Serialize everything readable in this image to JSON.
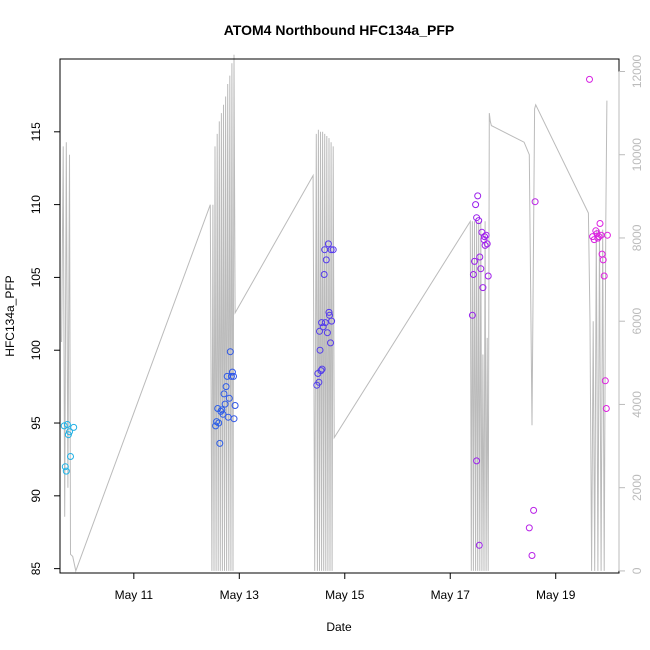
{
  "chart_data": {
    "type": "scatter",
    "title": "ATOM4 Northbound HFC134a_PFP",
    "xlabel": "Date",
    "ylabel": "HFC134a_PFP",
    "xlim": [
      9.6,
      20.2
    ],
    "ylim": [
      84.7,
      120.0
    ],
    "y2lim": [
      -50,
      12300
    ],
    "x_ticks": [
      {
        "value": 11,
        "label": "May 11"
      },
      {
        "value": 13,
        "label": "May 13"
      },
      {
        "value": 15,
        "label": "May 15"
      },
      {
        "value": 17,
        "label": "May 17"
      },
      {
        "value": 19,
        "label": "May 19"
      }
    ],
    "y_ticks": [
      85,
      90,
      95,
      100,
      105,
      110,
      115
    ],
    "y2_ticks": [
      0,
      2000,
      4000,
      6000,
      8000,
      10000,
      12000
    ],
    "colors": {
      "axis": "#000000",
      "line": "#bbbbbb",
      "right_axis": "#bbbbbb",
      "point_gradient": [
        "#1fb4e6",
        "#3050e8",
        "#8020f0",
        "#e020e0"
      ]
    },
    "series": [
      {
        "name": "HFC134a_PFP",
        "x": [
          9.68,
          9.7,
          9.72,
          9.74,
          9.76,
          9.78,
          9.8,
          9.86,
          12.55,
          12.57,
          12.59,
          12.61,
          12.63,
          12.65,
          12.67,
          12.69,
          12.71,
          12.73,
          12.75,
          12.77,
          12.79,
          12.81,
          12.83,
          12.85,
          12.87,
          12.89,
          12.9,
          12.92,
          14.47,
          14.49,
          14.51,
          14.53,
          14.55,
          14.57,
          14.59,
          14.61,
          14.63,
          14.65,
          14.67,
          14.69,
          14.71,
          14.73,
          14.75,
          14.52,
          14.56,
          14.62,
          14.7,
          14.74,
          14.78,
          17.42,
          17.44,
          17.46,
          17.48,
          17.5,
          17.52,
          17.54,
          17.56,
          17.58,
          17.6,
          17.62,
          17.64,
          17.66,
          17.68,
          17.7,
          17.72,
          17.5,
          17.55,
          17.65,
          18.5,
          18.55,
          18.58,
          18.61,
          19.64,
          19.7,
          19.73,
          19.76,
          19.78,
          19.8,
          19.82,
          19.84,
          19.86,
          19.88,
          19.9,
          19.92,
          19.94,
          19.96,
          19.98
        ],
        "y": [
          94.8,
          92.0,
          91.7,
          94.9,
          94.2,
          94.4,
          92.7,
          94.7,
          94.8,
          95.1,
          96.0,
          95.0,
          93.6,
          95.8,
          95.9,
          95.6,
          97.0,
          96.3,
          97.5,
          98.2,
          95.4,
          96.7,
          99.9,
          98.2,
          98.5,
          98.2,
          95.3,
          96.2,
          97.6,
          98.4,
          97.8,
          100.0,
          98.6,
          98.7,
          101.6,
          105.2,
          101.9,
          106.2,
          101.2,
          107.3,
          102.4,
          100.5,
          102.0,
          101.3,
          101.9,
          106.9,
          102.6,
          106.9,
          106.9,
          102.4,
          105.2,
          106.1,
          110.0,
          109.1,
          110.6,
          108.9,
          106.4,
          105.6,
          108.1,
          104.3,
          107.6,
          107.2,
          107.9,
          107.3,
          105.1,
          92.4,
          86.6,
          107.8,
          87.8,
          85.9,
          89.0,
          110.2,
          118.6,
          107.8,
          107.6,
          108.2,
          108.0,
          107.7,
          107.8,
          108.7,
          107.9,
          106.6,
          106.2,
          105.1,
          97.9,
          96.0,
          107.9
        ]
      },
      {
        "name": "altitude",
        "type": "line",
        "x": [
          9.63,
          9.66,
          9.69,
          9.72,
          9.75,
          9.78,
          9.8,
          9.84,
          9.9,
          12.45,
          12.48,
          12.5,
          12.52,
          12.54,
          12.56,
          12.58,
          12.6,
          12.62,
          12.64,
          12.66,
          12.68,
          12.7,
          12.72,
          12.74,
          12.76,
          12.78,
          12.8,
          12.82,
          12.84,
          12.86,
          12.88,
          12.9,
          12.92,
          14.4,
          14.43,
          14.46,
          14.48,
          14.5,
          14.52,
          14.54,
          14.56,
          14.58,
          14.6,
          14.62,
          14.64,
          14.66,
          14.68,
          14.7,
          14.72,
          14.74,
          14.76,
          14.78,
          14.8,
          17.38,
          17.4,
          17.42,
          17.44,
          17.46,
          17.48,
          17.5,
          17.52,
          17.54,
          17.56,
          17.58,
          17.6,
          17.62,
          17.64,
          17.66,
          17.68,
          17.7,
          17.72,
          17.74,
          17.76,
          17.78,
          18.4,
          18.5,
          18.55,
          18.6,
          18.62,
          19.62,
          19.65,
          19.68,
          19.71,
          19.74,
          19.77,
          19.8,
          19.83,
          19.86,
          19.89,
          19.92,
          19.95,
          19.97
        ],
        "y": [
          5500,
          10200,
          1300,
          10300,
          2000,
          10000,
          400,
          350,
          0,
          8800,
          0,
          8800,
          0,
          10200,
          0,
          10500,
          0,
          10800,
          0,
          11000,
          0,
          11200,
          0,
          11400,
          0,
          11700,
          0,
          11900,
          0,
          12200,
          0,
          12400,
          6200,
          9500,
          0,
          10500,
          0,
          10600,
          0,
          10550,
          0,
          10550,
          0,
          10500,
          0,
          10450,
          0,
          10400,
          0,
          10300,
          0,
          10200,
          3200,
          8400,
          0,
          8400,
          0,
          8400,
          0,
          8400,
          0,
          8400,
          0,
          8400,
          0,
          5200,
          0,
          8400,
          0,
          5600,
          0,
          11000,
          10800,
          10700,
          10300,
          10000,
          3500,
          11100,
          11200,
          8600,
          6000,
          0,
          6000,
          0,
          8200,
          0,
          8200,
          0,
          8200,
          0,
          8400,
          11300
        ]
      }
    ]
  }
}
